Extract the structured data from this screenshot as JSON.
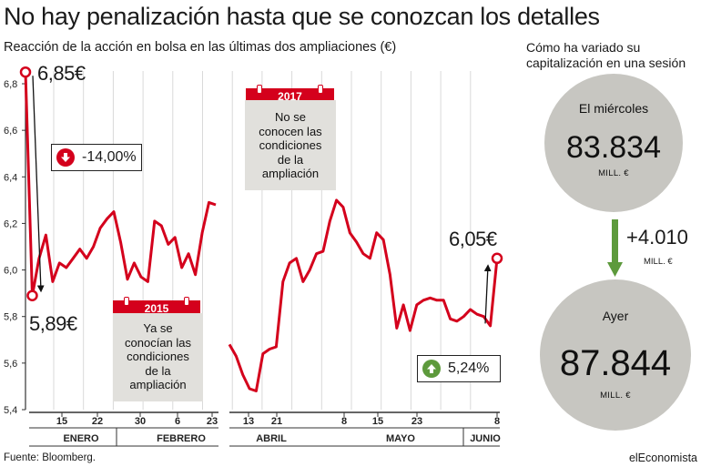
{
  "header": {
    "title": "No hay penalización hasta que se conozcan los detalles",
    "subtitle": "Reacción de la acción en bolsa en las últimas dos ampliaciones (€)",
    "side_title": "Cómo ha variado su capitalización en una sesión"
  },
  "footer": {
    "source": "Fuente: Bloomberg.",
    "brand": "elEconomista"
  },
  "chart_data": {
    "type": "line",
    "ylim": [
      5.4,
      6.8
    ],
    "y_ticks": [
      "5,4",
      "5,6",
      "5,8",
      "6,0",
      "6,2",
      "6,4",
      "6,6",
      "6,8"
    ],
    "y_tick_values": [
      5.4,
      5.6,
      5.8,
      6.0,
      6.2,
      6.4,
      6.6,
      6.8
    ],
    "grid": "vertical",
    "series": [
      {
        "period": "2015",
        "x_ticks": [
          "15",
          "22",
          "30",
          "6",
          "23"
        ],
        "months": [
          "ENERO",
          "FEBRERO"
        ],
        "values": [
          6.85,
          5.89,
          6.05,
          6.15,
          5.95,
          6.03,
          6.01,
          6.05,
          6.09,
          6.05,
          6.1,
          6.18,
          6.22,
          6.25,
          6.12,
          5.96,
          6.03,
          5.97,
          5.95,
          6.21,
          6.19,
          6.11,
          6.14,
          6.01,
          6.07,
          5.98,
          6.16,
          6.29,
          6.28
        ]
      },
      {
        "period": "2017",
        "x_ticks": [
          "13",
          "21",
          "8",
          "15",
          "23",
          "8"
        ],
        "months": [
          "ABRIL",
          "MAYO",
          "JUNIO"
        ],
        "values": [
          5.68,
          5.63,
          5.55,
          5.49,
          5.48,
          5.64,
          5.66,
          5.67,
          5.95,
          6.03,
          6.05,
          5.95,
          6.0,
          6.07,
          6.08,
          6.21,
          6.3,
          6.27,
          6.16,
          6.12,
          6.07,
          6.05,
          6.16,
          6.13,
          5.98,
          5.75,
          5.85,
          5.74,
          5.85,
          5.87,
          5.88,
          5.87,
          5.87,
          5.79,
          5.78,
          5.8,
          5.83,
          5.81,
          5.8,
          5.76,
          6.05
        ]
      }
    ],
    "annotations": {
      "start_value": "6,85€",
      "low_value": "5,89€",
      "end_value": "6,05€",
      "drop_pct": "-14,00%",
      "rise_pct": "5,24%",
      "note_2015": {
        "tag": "2015",
        "lines": [
          "Ya se",
          "conocían las",
          "condiciones",
          "de la",
          "ampliación"
        ]
      },
      "note_2017": {
        "tag": "2017",
        "lines": [
          "No se",
          "conocen las",
          "condiciones",
          "de la",
          "ampliación"
        ]
      }
    }
  },
  "capitalization": {
    "before": {
      "label": "El miércoles",
      "value": "83.834",
      "unit": "MILL. €"
    },
    "after": {
      "label": "Ayer",
      "value": "87.844",
      "unit": "MILL. €"
    },
    "change": {
      "value": "+4.010",
      "unit": "MILL. €"
    }
  },
  "colors": {
    "line": "#d4001c",
    "up": "#5d9a3c",
    "circle": "#c7c6c1",
    "note": "#e1e0dc"
  }
}
